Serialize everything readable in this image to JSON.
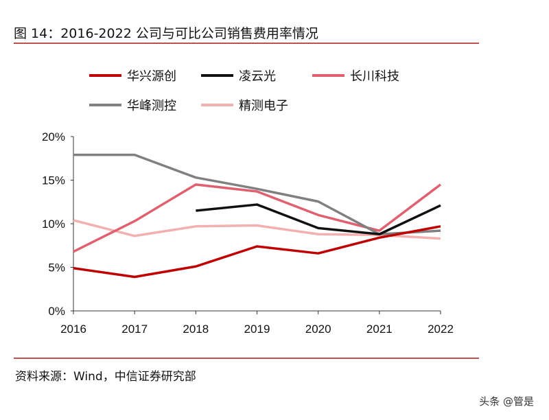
{
  "header": {
    "title": "图 14：2016-2022 公司与可比公司销售费用率情况"
  },
  "footer": {
    "source": "资料来源：Wind，中信证券研究部",
    "watermark": "头条 @管是"
  },
  "chart_data": {
    "type": "line",
    "title": "",
    "xlabel": "",
    "ylabel": "",
    "x": [
      "2016",
      "2017",
      "2018",
      "2019",
      "2020",
      "2021",
      "2022"
    ],
    "ylim": [
      0,
      20
    ],
    "yticks": [
      "0%",
      "5%",
      "10%",
      "15%",
      "20%"
    ],
    "grid": false,
    "legend": "top",
    "series": [
      {
        "name": "华兴源创",
        "color": "#c00000",
        "values": [
          4.9,
          3.9,
          5.1,
          7.4,
          6.6,
          8.4,
          9.7
        ]
      },
      {
        "name": "凌云光",
        "color": "#111111",
        "values": [
          null,
          null,
          11.5,
          12.2,
          9.5,
          8.8,
          12.1
        ]
      },
      {
        "name": "长川科技",
        "color": "#e06070",
        "values": [
          6.8,
          10.3,
          14.5,
          13.7,
          11.0,
          9.2,
          14.5
        ]
      },
      {
        "name": "华峰测控",
        "color": "#808080",
        "values": [
          17.9,
          17.9,
          15.3,
          14.0,
          12.55,
          8.8,
          9.2
        ]
      },
      {
        "name": "精测电子",
        "color": "#f2b0b0",
        "values": [
          10.4,
          8.6,
          9.7,
          9.8,
          8.8,
          8.7,
          8.3
        ]
      }
    ]
  }
}
